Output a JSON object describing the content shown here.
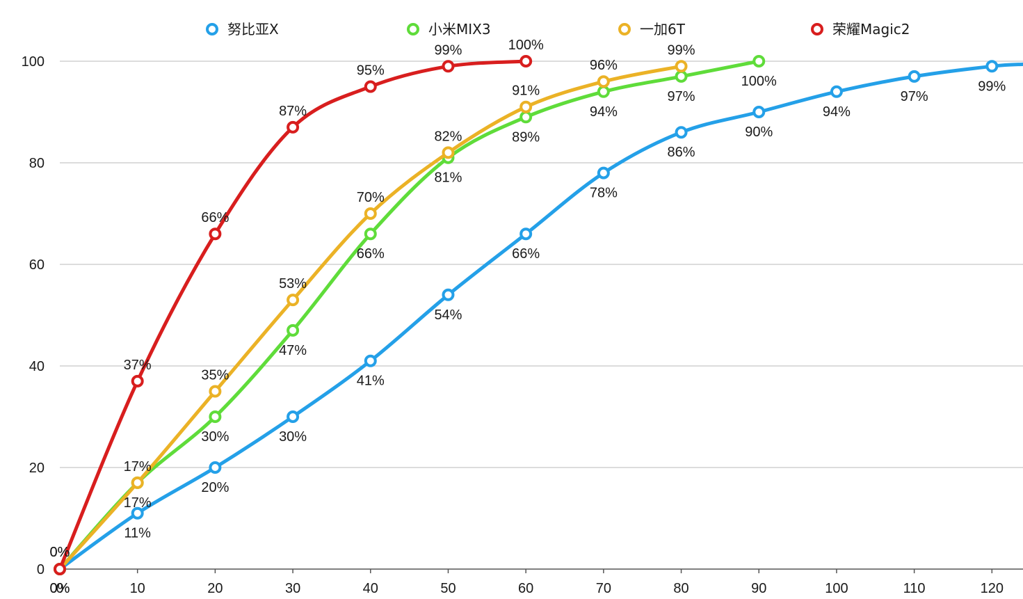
{
  "chart_data": {
    "type": "line",
    "title": "",
    "xlabel": "",
    "ylabel": "",
    "x_ticks": [
      0,
      10,
      20,
      30,
      40,
      50,
      60,
      70,
      80,
      90,
      100,
      110,
      120
    ],
    "y_ticks": [
      0,
      20,
      40,
      60,
      80,
      100
    ],
    "xlim": [
      0,
      124
    ],
    "ylim": [
      0,
      100
    ],
    "grid": "horizontal",
    "legend_position": "top",
    "series": [
      {
        "name": "努比亚X",
        "color": "#24a0e8",
        "x": [
          0,
          10,
          20,
          30,
          40,
          50,
          60,
          70,
          80,
          90,
          100,
          110,
          120,
          124
        ],
        "values": [
          0,
          11,
          20,
          30,
          41,
          54,
          66,
          78,
          86,
          90,
          94,
          97,
          99,
          99.4
        ],
        "labels": [
          "0%",
          "11%",
          "20%",
          "30%",
          "41%",
          "54%",
          "66%",
          "78%",
          "86%",
          "90%",
          "94%",
          "97%",
          "99%",
          ""
        ],
        "label_pos": "below"
      },
      {
        "name": "小米MIX3",
        "color": "#5fdc3a",
        "x": [
          0,
          10,
          20,
          30,
          40,
          50,
          60,
          70,
          80,
          90
        ],
        "values": [
          0,
          17,
          30,
          47,
          66,
          81,
          89,
          94,
          97,
          100
        ],
        "labels": [
          "0%",
          "17%",
          "30%",
          "47%",
          "66%",
          "81%",
          "89%",
          "94%",
          "97%",
          "100%"
        ],
        "label_pos": "below"
      },
      {
        "name": "一加6T",
        "color": "#ebb226",
        "x": [
          0,
          10,
          20,
          30,
          40,
          50,
          60,
          70,
          80
        ],
        "values": [
          0,
          17,
          35,
          53,
          70,
          82,
          91,
          96,
          99
        ],
        "labels": [
          "0%",
          "17%",
          "35%",
          "53%",
          "70%",
          "82%",
          "91%",
          "96%",
          "99%"
        ],
        "label_pos": "above"
      },
      {
        "name": "荣耀Magic2",
        "color": "#d81e1e",
        "x": [
          0,
          10,
          20,
          30,
          40,
          50,
          60
        ],
        "values": [
          0,
          37,
          66,
          87,
          95,
          99,
          100
        ],
        "labels": [
          "0%",
          "37%",
          "66%",
          "87%",
          "95%",
          "99%",
          "100%"
        ],
        "label_pos": "above"
      }
    ]
  }
}
